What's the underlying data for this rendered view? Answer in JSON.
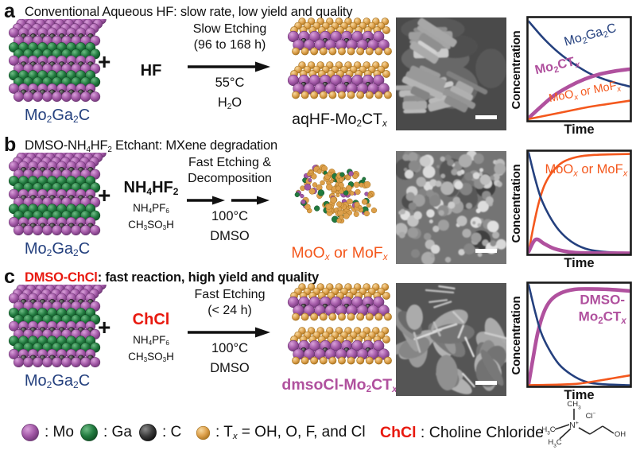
{
  "strings": {
    "plus": "+"
  },
  "colors": {
    "navy": "#24407e",
    "purple": "#b0519e",
    "orange": "#f4581d",
    "red": "#e8190f",
    "black": "#111111",
    "mo": {
      "hi": "#d9a0da",
      "main": "#a258a6",
      "edge": "#6b3472"
    },
    "ga": {
      "hi": "#6fbc85",
      "main": "#217a3f",
      "edge": "#0f4a22"
    },
    "c": {
      "hi": "#8a8a8a",
      "main": "#3b3b3b",
      "edge": "#0d0d0d"
    },
    "t": {
      "hi": "#f6d9a0",
      "main": "#dda04b",
      "edge": "#a4701e"
    }
  },
  "structures": {
    "max_layers": [
      "mo",
      "c",
      "mo",
      "ga",
      "ga",
      "mo",
      "c",
      "mo",
      "ga",
      "ga",
      "mo",
      "c",
      "mo"
    ],
    "mxene_slab": [
      "t",
      "mo",
      "c",
      "mo",
      "t"
    ]
  },
  "panels": [
    {
      "letter": "a",
      "title_parts": [
        {
          "text": "Conventional Aqueous HF: slow rate, low yield and quality",
          "color": "#111111",
          "bold": false
        }
      ],
      "reactant_label": "Mo~2~Ga~2~C",
      "reagents": {
        "main": {
          "text": "HF",
          "color": "#111111"
        },
        "additives": []
      },
      "arrow": {
        "style": "single",
        "top": [
          "Slow Etching",
          "(96 to 168 h)"
        ],
        "bottom": [
          "55°C",
          "H~2~O"
        ]
      },
      "product": {
        "type": "mxene",
        "label": "aqHF-Mo~2~CT~x~",
        "label_color": "#111111",
        "label_bold": false
      },
      "chart_index": 0
    },
    {
      "letter": "b",
      "title_parts": [
        {
          "text": "DMSO-NH~4~HF~2~ Etchant: MXene degradation",
          "color": "#111111",
          "bold": false
        }
      ],
      "reactant_label": "Mo~2~Ga~2~C",
      "reagents": {
        "main": {
          "text": "NH~4~HF~2~",
          "color": "#111111"
        },
        "additives": [
          "NH~4~PF~6~",
          "CH~3~SO~3~H"
        ]
      },
      "arrow": {
        "style": "double",
        "top": [
          "Fast Etching &",
          "Decomposition"
        ],
        "bottom": [
          "100°C",
          "DMSO"
        ]
      },
      "product": {
        "type": "scatter",
        "label": "MoO~x~ or MoF~x~",
        "label_color": "#f4581d",
        "label_bold": false
      },
      "chart_index": 1
    },
    {
      "letter": "c",
      "title_parts": [
        {
          "text": "DMSO-ChCl",
          "color": "#e8190f",
          "bold": true
        },
        {
          "text": ": fast reaction, high yield and quality",
          "color": "#111111",
          "bold": true
        }
      ],
      "reactant_label": "Mo~2~Ga~2~C",
      "reagents": {
        "main": {
          "text": "ChCl",
          "color": "#e8190f"
        },
        "additives": [
          "NH~4~PF~6~",
          "CH~3~SO~3~H"
        ]
      },
      "arrow": {
        "style": "single",
        "top": [
          "Fast Etching",
          "(< 24 h)"
        ],
        "bottom": [
          "100°C",
          "DMSO"
        ]
      },
      "product": {
        "type": "mxene",
        "label": "dmsoCl-Mo~2~CT~x~",
        "label_color": "#b0519e",
        "label_bold": true
      },
      "chart_index": 2
    }
  ],
  "chart_data": [
    {
      "type": "line",
      "xlabel": "Time",
      "ylabel": "Concentration",
      "x_range": [
        0,
        1
      ],
      "y_range": [
        0,
        1
      ],
      "grid": false,
      "legend_position": "inline",
      "series": [
        {
          "name": "Mo2Ga2C",
          "color_key": "navy",
          "width": 2.6,
          "points": [
            [
              0,
              0.97
            ],
            [
              0.15,
              0.8
            ],
            [
              0.3,
              0.66
            ],
            [
              0.45,
              0.55
            ],
            [
              0.6,
              0.46
            ],
            [
              0.75,
              0.4
            ],
            [
              0.88,
              0.36
            ],
            [
              1,
              0.33
            ]
          ]
        },
        {
          "name": "Mo2CTx",
          "color_key": "purple",
          "width": 4.6,
          "points": [
            [
              0,
              0.02
            ],
            [
              0.12,
              0.13
            ],
            [
              0.25,
              0.24
            ],
            [
              0.4,
              0.33
            ],
            [
              0.55,
              0.4
            ],
            [
              0.7,
              0.45
            ],
            [
              0.85,
              0.48
            ],
            [
              1,
              0.5
            ]
          ]
        },
        {
          "name": "MoOx or MoFx",
          "color_key": "orange",
          "width": 2.6,
          "points": [
            [
              0,
              0.01
            ],
            [
              0.2,
              0.05
            ],
            [
              0.4,
              0.09
            ],
            [
              0.6,
              0.13
            ],
            [
              0.8,
              0.16
            ],
            [
              1,
              0.19
            ]
          ]
        }
      ],
      "labels": [
        {
          "text": "Mo~2~Ga~2~C",
          "color_key": "navy",
          "x": 0.62,
          "y": 0.8,
          "rot": -16,
          "size": 16,
          "bold": false
        },
        {
          "text": "Mo~2~CT~x~",
          "color_key": "purple",
          "x": 0.29,
          "y": 0.5,
          "rot": -13,
          "size": 16,
          "bold": true
        },
        {
          "text": "MoO~x~ or MoF~x~",
          "color_key": "orange",
          "x": 0.56,
          "y": 0.245,
          "rot": -11,
          "size": 14.5,
          "bold": false
        }
      ]
    },
    {
      "type": "line",
      "xlabel": "Time",
      "ylabel": "Concentration",
      "x_range": [
        0,
        1
      ],
      "y_range": [
        0,
        1
      ],
      "grid": false,
      "legend_position": "inline",
      "series": [
        {
          "name": "MoOx or MoFx",
          "color_key": "orange",
          "width": 2.6,
          "points": [
            [
              0,
              0.02
            ],
            [
              0.05,
              0.28
            ],
            [
              0.1,
              0.5
            ],
            [
              0.16,
              0.68
            ],
            [
              0.24,
              0.81
            ],
            [
              0.34,
              0.9
            ],
            [
              0.48,
              0.95
            ],
            [
              0.65,
              0.97
            ],
            [
              1,
              0.98
            ]
          ]
        },
        {
          "name": "Mo2Ga2C",
          "color_key": "navy",
          "width": 2.6,
          "points": [
            [
              0,
              0.99
            ],
            [
              0.06,
              0.75
            ],
            [
              0.12,
              0.55
            ],
            [
              0.2,
              0.38
            ],
            [
              0.3,
              0.23
            ],
            [
              0.42,
              0.12
            ],
            [
              0.56,
              0.05
            ],
            [
              0.72,
              0.02
            ],
            [
              1,
              0.005
            ]
          ]
        },
        {
          "name": "Mo2CTx",
          "color_key": "purple",
          "width": 4.6,
          "points": [
            [
              0,
              0.02
            ],
            [
              0.05,
              0.12
            ],
            [
              0.09,
              0.14
            ],
            [
              0.15,
              0.1
            ],
            [
              0.25,
              0.05
            ],
            [
              0.38,
              0.02
            ],
            [
              0.55,
              0.006
            ],
            [
              1,
              0.004
            ]
          ]
        }
      ],
      "labels": [
        {
          "text": "MoO~x~ or MoF~x~",
          "color_key": "orange",
          "x": 0.57,
          "y": 0.79,
          "rot": 0,
          "size": 16.5,
          "bold": false
        }
      ]
    },
    {
      "type": "line",
      "xlabel": "Time",
      "ylabel": "Concentration",
      "x_range": [
        0,
        1
      ],
      "y_range": [
        0,
        1
      ],
      "grid": false,
      "legend_position": "inline",
      "series": [
        {
          "name": "DMSO-Mo2CTx",
          "color_key": "purple",
          "width": 4.6,
          "points": [
            [
              0,
              0.02
            ],
            [
              0.04,
              0.25
            ],
            [
              0.09,
              0.52
            ],
            [
              0.15,
              0.72
            ],
            [
              0.22,
              0.84
            ],
            [
              0.32,
              0.91
            ],
            [
              0.45,
              0.945
            ],
            [
              0.6,
              0.95
            ],
            [
              0.8,
              0.945
            ],
            [
              1,
              0.93
            ]
          ]
        },
        {
          "name": "Mo2Ga2C",
          "color_key": "navy",
          "width": 2.6,
          "points": [
            [
              0,
              0.99
            ],
            [
              0.06,
              0.74
            ],
            [
              0.12,
              0.53
            ],
            [
              0.2,
              0.36
            ],
            [
              0.3,
              0.21
            ],
            [
              0.42,
              0.11
            ],
            [
              0.56,
              0.04
            ],
            [
              0.72,
              0.015
            ],
            [
              1,
              0.004
            ]
          ]
        },
        {
          "name": "MoOx or MoFx",
          "color_key": "orange",
          "width": 2.6,
          "points": [
            [
              0,
              0.004
            ],
            [
              0.3,
              0.01
            ],
            [
              0.5,
              0.02
            ],
            [
              0.7,
              0.05
            ],
            [
              0.85,
              0.075
            ],
            [
              1,
              0.1
            ]
          ]
        }
      ],
      "labels": [
        {
          "text": "DMSO-",
          "color_key": "purple",
          "x": 0.73,
          "y": 0.8,
          "rot": 0,
          "size": 17,
          "bold": true
        },
        {
          "text": "Mo~2~CT~x~",
          "color_key": "purple",
          "x": 0.73,
          "y": 0.635,
          "rot": 0,
          "size": 17,
          "bold": true
        }
      ]
    }
  ],
  "legend": {
    "items": [
      {
        "sphere": "mo",
        "label": ": Mo"
      },
      {
        "sphere": "ga",
        "label": ": Ga"
      },
      {
        "sphere": "c",
        "label": ": C"
      },
      {
        "sphere": "t",
        "label": ": T~x~ = OH, O, F, and Cl"
      }
    ],
    "chcl": {
      "name": "ChCl",
      "desc": " : Choline Chloride"
    },
    "structure": {
      "methyl_top": "CH~3~",
      "methyl_left1": "H~3~C",
      "methyl_left2": "H~3~C",
      "nitrogen": "N^+^",
      "chloride": "Cl^−^",
      "hydroxyl": "OH"
    }
  }
}
